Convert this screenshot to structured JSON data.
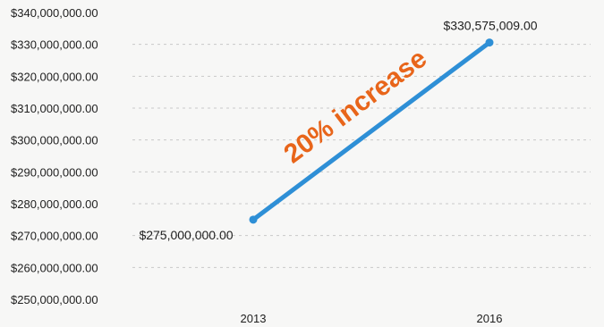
{
  "chart_data": {
    "type": "line",
    "categories": [
      "2013",
      "2016"
    ],
    "series": [
      {
        "values": [
          275000000,
          330575009
        ],
        "color": "#2e8fd6"
      }
    ],
    "data_labels": [
      "$275,000,000.00",
      "$330,575,009.00"
    ],
    "ylim": [
      250000000,
      340000000
    ],
    "y_ticks": [
      {
        "value": 340000000,
        "label": "$340,000,000.00"
      },
      {
        "value": 330000000,
        "label": "$330,000,000.00"
      },
      {
        "value": 320000000,
        "label": "$320,000,000.00"
      },
      {
        "value": 310000000,
        "label": "$310,000,000.00"
      },
      {
        "value": 300000000,
        "label": "$300,000,000.00"
      },
      {
        "value": 290000000,
        "label": "$290,000,000.00"
      },
      {
        "value": 280000000,
        "label": "$280,000,000.00"
      },
      {
        "value": 270000000,
        "label": "$270,000,000.00"
      },
      {
        "value": 260000000,
        "label": "$260,000,000.00"
      },
      {
        "value": 250000000,
        "label": "$250,000,000.00"
      }
    ],
    "gridlines": true,
    "annotation": {
      "text": "20% increase",
      "color": "#e8651a"
    }
  }
}
